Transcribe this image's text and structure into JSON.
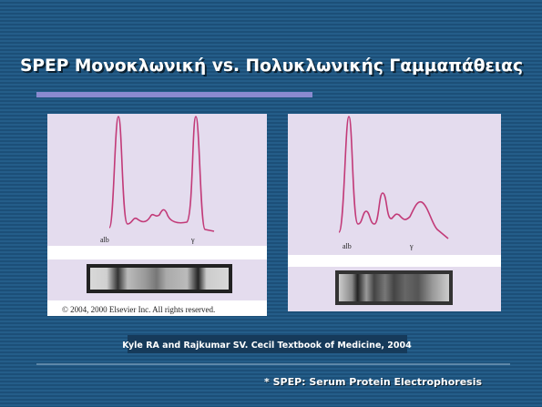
{
  "title": "SPEP Μονοκλωνική vs. Πολυκλωνικής Γαμμαπάθειας",
  "panels": [
    {
      "labels": [
        "alb",
        "γ"
      ],
      "caption": "© 2004, 2000 Elsevier Inc. All rights reserved."
    },
    {
      "labels": [
        "alb",
        "γ"
      ]
    }
  ],
  "citation": "Kyle RA and Rajkumar SV. Cecil Textbook of Medicine, 2004",
  "footnote": "* SPEP: Serum Protein Electrophoresis"
}
